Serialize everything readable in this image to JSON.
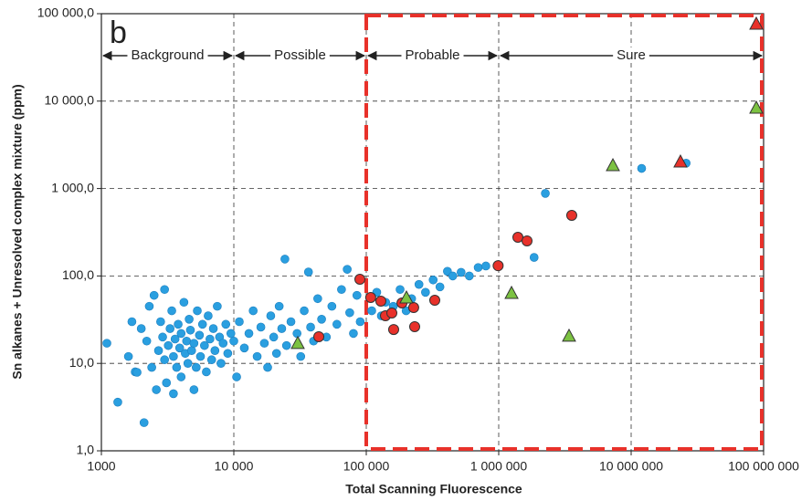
{
  "chart_data": {
    "type": "scatter",
    "panel_label": "b",
    "x_label": "Total Scanning Fluorescence",
    "y_label": "Sn alkanes + Unresolved complex mixture (ppm)",
    "log_x": true,
    "log_y": true,
    "grid": true,
    "xlim": [
      1000,
      100000000
    ],
    "ylim": [
      1,
      100000
    ],
    "xticks": [
      {
        "value": 1000,
        "label": "1000"
      },
      {
        "value": 10000,
        "label": "10 000"
      },
      {
        "value": 100000,
        "label": "100 000"
      },
      {
        "value": 1000000,
        "label": "1 000 000"
      },
      {
        "value": 10000000,
        "label": "10 000 000"
      },
      {
        "value": 100000000,
        "label": "100 000 000"
      }
    ],
    "yticks": [
      {
        "value": 1,
        "label": "1,0"
      },
      {
        "value": 10,
        "label": "10,0"
      },
      {
        "value": 100,
        "label": "100,0"
      },
      {
        "value": 1000,
        "label": "1 000,0"
      },
      {
        "value": 10000,
        "label": "10 000,0"
      },
      {
        "value": 100000,
        "label": "100 000,0"
      }
    ],
    "regions": [
      {
        "label": "Background",
        "from": 1000,
        "to": 10000
      },
      {
        "label": "Possible",
        "from": 10000,
        "to": 100000
      },
      {
        "label": "Probable",
        "from": 100000,
        "to": 1000000
      },
      {
        "label": "Sure",
        "from": 1000000,
        "to": 100000000
      }
    ],
    "highlight_xlim": [
      100000,
      100000000
    ],
    "highlight_color": "#e8312a",
    "series": [
      {
        "color": "#2a9fe0",
        "marker": "circle",
        "x": [
          1100,
          1330,
          1600,
          1700,
          1800,
          1860,
          2100,
          2000,
          2200,
          2300,
          2400,
          2500,
          2600,
          2700,
          2800,
          2900,
          3000,
          3000,
          3100,
          3200,
          3300,
          3400,
          3500,
          3500,
          3600,
          3700,
          3800,
          3900,
          4000,
          4000,
          4200,
          4300,
          4400,
          4500,
          4600,
          4700,
          4800,
          5000,
          5000,
          5200,
          5300,
          5500,
          5600,
          5800,
          6000,
          6200,
          6400,
          6600,
          6800,
          7000,
          7200,
          7500,
          7800,
          8000,
          8300,
          8700,
          9000,
          9500,
          10000,
          10500,
          11000,
          12000,
          13000,
          14000,
          15000,
          16000,
          17000,
          18000,
          19000,
          20000,
          21000,
          22000,
          23000,
          24300,
          25000,
          27000,
          30000,
          32000,
          34000,
          36600,
          38000,
          40000,
          43000,
          46000,
          50000,
          55000,
          60000,
          65000,
          71800,
          75000,
          80000,
          85000,
          90000,
          110000,
          120000,
          130000,
          140000,
          160000,
          180000,
          200000,
          220000,
          250000,
          280000,
          320000,
          360000,
          410000,
          450000,
          520000,
          600000,
          700000,
          800000,
          1850000,
          2250000,
          12000000,
          26000000
        ],
        "values": [
          17,
          3.6,
          12,
          30,
          8,
          7.9,
          2.1,
          25,
          18,
          45,
          9,
          60,
          5,
          14,
          30,
          20,
          11,
          70,
          6,
          16,
          25,
          40,
          12,
          4.5,
          19,
          9,
          28,
          15,
          22,
          7,
          50,
          13,
          18,
          10,
          32,
          24,
          14,
          17,
          5,
          9,
          40,
          21,
          12,
          28,
          16,
          8,
          35,
          19,
          11,
          25,
          14,
          45,
          20,
          10,
          17,
          28,
          13,
          22,
          18,
          7,
          30,
          15,
          22,
          40,
          12,
          26,
          17,
          9,
          35,
          20,
          13,
          45,
          25,
          156,
          16,
          30,
          22,
          12,
          40,
          111,
          26,
          18,
          55,
          32,
          20,
          45,
          28,
          70,
          119,
          38,
          22,
          60,
          30,
          40,
          65,
          35,
          50,
          45,
          70,
          40,
          55,
          80,
          65,
          90,
          75,
          113,
          100,
          110,
          100,
          125,
          130,
          163,
          880,
          1700,
          1950
        ]
      },
      {
        "color": "#e8312a",
        "marker": "circle",
        "x": [
          89500,
          108000,
          128900,
          139600,
          156000,
          161000,
          186000,
          228000,
          232000,
          329000,
          990000,
          1396000,
          1636000,
          3560000,
          43800
        ],
        "values": [
          91.7,
          56.7,
          51.5,
          35.1,
          37.7,
          24.4,
          49.1,
          43.5,
          26.3,
          52.7,
          131,
          277,
          252,
          493,
          20.2
        ]
      },
      {
        "color": "#7cc242",
        "marker": "triangle",
        "x": [
          30400,
          201000,
          1250000,
          3397000,
          7280000,
          88100000
        ],
        "values": [
          17.1,
          56.7,
          64,
          20.7,
          1850,
          8410
        ]
      },
      {
        "color": "#e8312a",
        "marker": "triangle",
        "x": [
          23560000,
          88100000
        ],
        "values": [
          2037,
          76800
        ]
      }
    ]
  }
}
